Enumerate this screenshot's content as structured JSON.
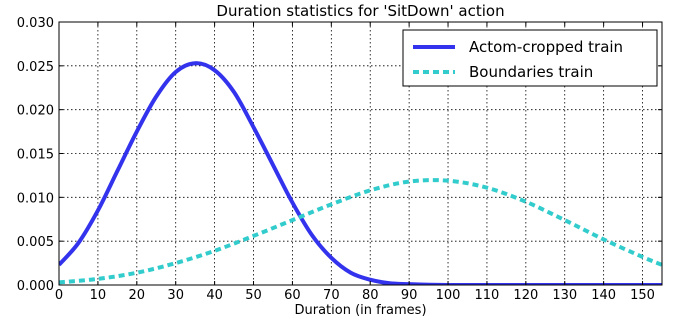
{
  "chart_data": {
    "type": "line",
    "title": "Duration statistics for 'SitDown' action",
    "xlabel": "Duration (in frames)",
    "ylabel": "",
    "xlim": [
      0,
      155
    ],
    "ylim": [
      0,
      0.03
    ],
    "x_ticks": [
      "0",
      "10",
      "20",
      "30",
      "40",
      "50",
      "60",
      "70",
      "80",
      "90",
      "100",
      "110",
      "120",
      "130",
      "140",
      "150"
    ],
    "y_ticks": [
      "0.000",
      "0.005",
      "0.010",
      "0.015",
      "0.020",
      "0.025",
      "0.030"
    ],
    "grid": true,
    "legend_position": "top-right",
    "series": [
      {
        "name": "Actom-cropped train",
        "color": "#3333ee",
        "style": "solid",
        "x": [
          0,
          5,
          10,
          15,
          20,
          25,
          30,
          35,
          40,
          45,
          50,
          55,
          60,
          65,
          70,
          75,
          80,
          85,
          90,
          100,
          110,
          120,
          130,
          140,
          150,
          155
        ],
        "y": [
          0.0023,
          0.0048,
          0.0085,
          0.013,
          0.0175,
          0.0215,
          0.0243,
          0.0253,
          0.0245,
          0.022,
          0.018,
          0.0137,
          0.0094,
          0.0057,
          0.0031,
          0.0014,
          0.0006,
          0.0002,
          0.0001,
          0.0,
          0.0,
          0.0,
          0.0,
          0.0,
          0.0,
          0.0
        ]
      },
      {
        "name": "Boundaries train",
        "color": "#33cccc",
        "style": "dashed",
        "x": [
          0,
          10,
          20,
          30,
          40,
          50,
          60,
          70,
          80,
          90,
          100,
          110,
          120,
          130,
          140,
          150,
          155
        ],
        "y": [
          0.0003,
          0.0007,
          0.0014,
          0.0025,
          0.0039,
          0.0056,
          0.0074,
          0.0092,
          0.0108,
          0.0118,
          0.0119,
          0.0111,
          0.0095,
          0.0074,
          0.0052,
          0.0032,
          0.0023
        ]
      }
    ]
  }
}
